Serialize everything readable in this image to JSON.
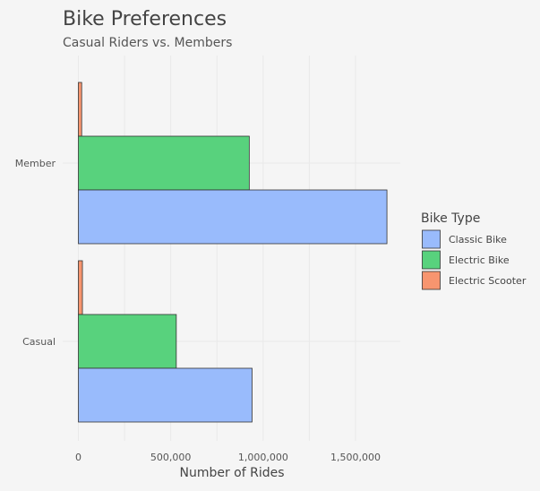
{
  "chart_data": {
    "type": "bar",
    "orientation": "horizontal",
    "title": "Bike Preferences",
    "subtitle": "Casual Riders vs. Members",
    "xlabel": "Number of Rides",
    "ylabel": "",
    "xlim": [
      0,
      1750000
    ],
    "x_ticks": [
      0,
      500000,
      1000000,
      1500000
    ],
    "x_tick_labels": [
      "0",
      "500,000",
      "1,000,000",
      "1,500,000"
    ],
    "categories": [
      "Member",
      "Casual"
    ],
    "legend_title": "Bike Type",
    "legend_position": "right",
    "grid": true,
    "series": [
      {
        "name": "Classic Bike",
        "color": "#99bbfc",
        "values": [
          1670000,
          940000
        ]
      },
      {
        "name": "Electric Bike",
        "color": "#58d27d",
        "values": [
          925000,
          530000
        ]
      },
      {
        "name": "Electric Scooter",
        "color": "#f7956f",
        "values": [
          18000,
          22000
        ]
      }
    ]
  }
}
